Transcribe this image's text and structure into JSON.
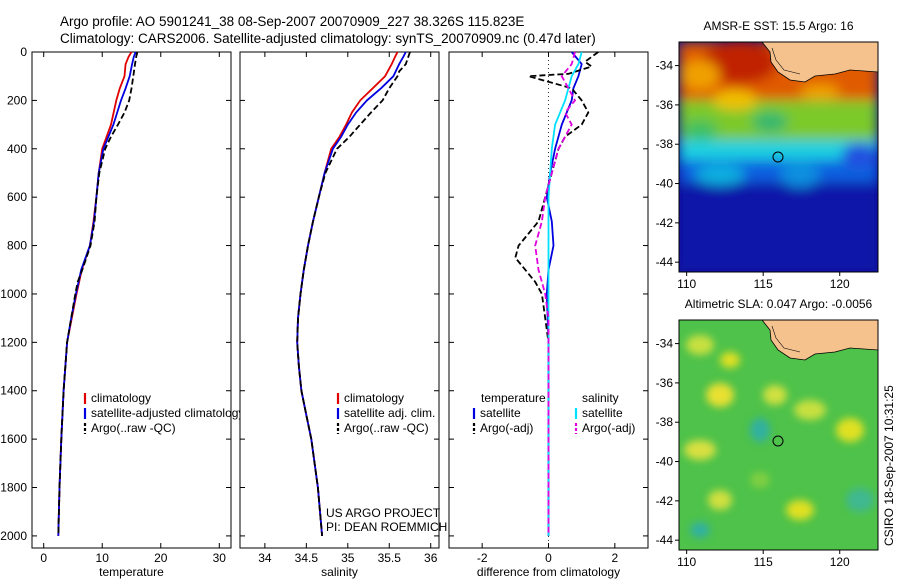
{
  "header": {
    "line1": "Argo profile: AO 5901241_38 08-Sep-2007 20070909_227 38.326S 115.823E",
    "line2": "Climatology: CARS2006. Satellite-adjusted climatology: synTS_20070909.nc (0.47d later)"
  },
  "stamp": "CSIRO 18-Sep-2007 10:31:25",
  "colors": {
    "climatology": "#e00000",
    "satellite": "#0000e0",
    "argo": "#000000",
    "temp_diff": "#0000e0",
    "sal_diff": "#00e0ff",
    "argo_sal": "#e000e0"
  },
  "chart_data": [
    {
      "type": "line",
      "xlabel": "temperature",
      "xlim": [
        -2,
        32
      ],
      "ylim": [
        2050,
        0
      ],
      "xticks": [
        0,
        10,
        20,
        30
      ],
      "yticks": [
        0,
        200,
        400,
        600,
        800,
        1000,
        1200,
        1400,
        1600,
        1800,
        2000
      ],
      "legend": {
        "placement": "bottom-right",
        "entries": [
          "climatology",
          "satellite-adjusted climatology",
          "Argo(..raw -QC)"
        ]
      },
      "series": [
        {
          "name": "climatology",
          "style": "solid",
          "color": "#e00000",
          "depth": [
            0,
            20,
            50,
            100,
            150,
            200,
            300,
            400,
            500,
            600,
            700,
            800,
            900,
            1000,
            1100,
            1200,
            1400,
            1600,
            1800,
            2000
          ],
          "values": [
            15,
            14.5,
            14,
            13.8,
            13,
            12.4,
            11.5,
            10,
            9.4,
            9,
            8.5,
            7.9,
            6.5,
            5.6,
            4.8,
            4,
            3.4,
            3,
            2.7,
            2.5
          ]
        },
        {
          "name": "satellite-adjusted climatology",
          "style": "solid",
          "color": "#0000e0",
          "depth": [
            0,
            20,
            50,
            100,
            150,
            200,
            300,
            400,
            500,
            600,
            700,
            800,
            900,
            1000,
            1100,
            1200,
            1400,
            1600,
            1800,
            2000
          ],
          "values": [
            15.7,
            15.4,
            15.1,
            14.7,
            14,
            13.2,
            11.9,
            10.2,
            9.4,
            9,
            8.6,
            7.9,
            6.4,
            5.5,
            4.7,
            4,
            3.4,
            3,
            2.7,
            2.5
          ]
        },
        {
          "name": "Argo(..raw -QC)",
          "style": "dashed",
          "color": "#000000",
          "depth": [
            0,
            20,
            50,
            100,
            150,
            200,
            250,
            300,
            350,
            400,
            500,
            600,
            700,
            800,
            900,
            950,
            1000,
            1100,
            1200,
            1400,
            1600,
            1800,
            2000
          ],
          "values": [
            16,
            15.8,
            15.6,
            15.3,
            15,
            14.6,
            13.8,
            12.7,
            11.5,
            10.5,
            9.5,
            9,
            8.7,
            8,
            6.6,
            5.8,
            5.4,
            4.7,
            4,
            3.4,
            3,
            2.7,
            2.5
          ]
        }
      ]
    },
    {
      "type": "line",
      "xlabel": "salinity",
      "xlim": [
        33.7,
        36.1
      ],
      "ylim": [
        2050,
        0
      ],
      "xticks": [
        34,
        34.5,
        35,
        35.5,
        36
      ],
      "yticks": [
        0,
        200,
        400,
        600,
        800,
        1000,
        1200,
        1400,
        1600,
        1800,
        2000
      ],
      "legend": {
        "placement": "bottom-right",
        "entries": [
          "climatology",
          "satellite adj. clim.",
          "Argo(..raw -QC)"
        ]
      },
      "annotation": [
        "US ARGO PROJECT",
        "PI: DEAN ROEMMICH"
      ],
      "series": [
        {
          "name": "climatology",
          "style": "solid",
          "color": "#e00000",
          "depth": [
            0,
            20,
            50,
            100,
            150,
            200,
            250,
            300,
            350,
            400,
            500,
            600,
            700,
            800,
            900,
            1000,
            1100,
            1200,
            1300,
            1400,
            1500,
            1600,
            1800,
            2000
          ],
          "values": [
            35.6,
            35.57,
            35.53,
            35.45,
            35.3,
            35.15,
            35.05,
            34.98,
            34.9,
            34.8,
            34.72,
            34.65,
            34.58,
            34.52,
            34.47,
            34.43,
            34.4,
            34.39,
            34.41,
            34.44,
            34.5,
            34.56,
            34.64,
            34.69
          ]
        },
        {
          "name": "satellite adj. clim.",
          "style": "solid",
          "color": "#0000e0",
          "depth": [
            0,
            20,
            50,
            100,
            150,
            200,
            250,
            300,
            350,
            400,
            500,
            600,
            700,
            800,
            900,
            1000,
            1100,
            1200,
            1300,
            1400,
            1500,
            1600,
            1800,
            2000
          ],
          "values": [
            35.7,
            35.67,
            35.62,
            35.55,
            35.4,
            35.23,
            35.1,
            35.0,
            34.92,
            34.82,
            34.72,
            34.65,
            34.58,
            34.52,
            34.47,
            34.43,
            34.4,
            34.39,
            34.41,
            34.44,
            34.5,
            34.56,
            34.64,
            34.69
          ]
        },
        {
          "name": "Argo(..raw -QC)",
          "style": "dashed",
          "color": "#000000",
          "depth": [
            0,
            20,
            50,
            80,
            100,
            150,
            200,
            250,
            300,
            350,
            400,
            500,
            600,
            700,
            800,
            900,
            1000,
            1100,
            1200,
            1300,
            1400,
            1500,
            1600,
            1800,
            2000
          ],
          "values": [
            35.75,
            35.73,
            35.7,
            35.62,
            35.6,
            35.5,
            35.42,
            35.28,
            35.15,
            35.02,
            34.87,
            34.73,
            34.65,
            34.58,
            34.52,
            34.47,
            34.43,
            34.4,
            34.39,
            34.41,
            34.44,
            34.5,
            34.56,
            34.64,
            34.69
          ]
        }
      ]
    },
    {
      "type": "line",
      "xlabel": "difference from climatology",
      "xlim": [
        -3,
        3
      ],
      "ylim": [
        2050,
        0
      ],
      "xticks": [
        -2,
        0,
        2
      ],
      "yticks": [
        0,
        200,
        400,
        600,
        800,
        1000,
        1200,
        1400,
        1600,
        1800,
        2000
      ],
      "legend": {
        "placement": "bottom",
        "groups": [
          {
            "title": "temperature",
            "entries": [
              "satellite",
              "Argo(-adj)"
            ]
          },
          {
            "title": "salinity",
            "entries": [
              "satellite",
              "Argo(-adj)"
            ]
          }
        ]
      },
      "series": [
        {
          "name": "temperature satellite",
          "style": "solid",
          "color": "#0000e0",
          "depth": [
            0,
            50,
            100,
            150,
            200,
            300,
            400,
            500,
            600,
            700,
            800,
            900,
            1000,
            1200,
            1400,
            2000
          ],
          "values": [
            0.7,
            1.0,
            0.9,
            0.75,
            0.7,
            0.4,
            0.2,
            0.05,
            -0.05,
            0.1,
            0.15,
            0.0,
            -0.05,
            0,
            0,
            0
          ]
        },
        {
          "name": "temperature Argo(-adj)",
          "style": "dashed",
          "color": "#000000",
          "depth": [
            0,
            40,
            60,
            90,
            100,
            150,
            200,
            250,
            300,
            350,
            400,
            500,
            600,
            700,
            750,
            800,
            850,
            900,
            950,
            1000,
            1100,
            1200,
            1400,
            1600,
            1800,
            2000
          ],
          "values": [
            1.5,
            1.1,
            1.3,
            0.6,
            -0.6,
            0.7,
            1.0,
            1.2,
            1.0,
            0.5,
            0.3,
            0.1,
            -0.1,
            -0.3,
            -0.6,
            -0.9,
            -1.0,
            -0.7,
            -0.4,
            -0.2,
            -0.1,
            0,
            0,
            0,
            0,
            0
          ]
        },
        {
          "name": "salinity satellite",
          "style": "solid",
          "color": "#00e0ff",
          "depth": [
            0,
            50,
            100,
            150,
            200,
            300,
            400,
            500,
            600,
            800,
            1000,
            1200,
            1400,
            1600,
            1800,
            2000
          ],
          "values": [
            1.0,
            0.9,
            0.7,
            0.6,
            0.5,
            0.2,
            0.1,
            0.05,
            0.0,
            0.0,
            0.0,
            0.0,
            0.0,
            0.0,
            0.0,
            0.0
          ]
        },
        {
          "name": "salinity Argo(-adj)",
          "style": "dashed",
          "color": "#e000e0",
          "depth": [
            0,
            50,
            100,
            150,
            200,
            250,
            300,
            400,
            500,
            600,
            700,
            800,
            900,
            1000,
            1100,
            1200,
            1400,
            2000
          ],
          "values": [
            0.8,
            0.7,
            0.4,
            0.6,
            0.8,
            0.5,
            0.7,
            0.3,
            0.1,
            -0.1,
            -0.2,
            -0.4,
            -0.3,
            -0.1,
            0,
            0,
            0,
            0
          ]
        }
      ]
    },
    {
      "type": "heatmap",
      "title": "AMSR-E SST: 15.5 Argo: 16",
      "xticks": [
        110,
        115,
        120
      ],
      "yticks": [
        -34,
        -36,
        -38,
        -40,
        -42,
        -44
      ],
      "xlim": [
        109.5,
        122.5
      ],
      "ylim": [
        -44.5,
        -32.8
      ],
      "marker": {
        "lon": 115.823,
        "lat": -38.326
      }
    },
    {
      "type": "heatmap",
      "title": "Altimetric SLA: 0.047 Argo: -0.0056",
      "xticks": [
        110,
        115,
        120
      ],
      "yticks": [
        -34,
        -36,
        -38,
        -40,
        -42,
        -44
      ],
      "xlim": [
        109.5,
        122.5
      ],
      "ylim": [
        -44.5,
        -32.8
      ],
      "marker": {
        "lon": 115.823,
        "lat": -38.326
      }
    }
  ]
}
